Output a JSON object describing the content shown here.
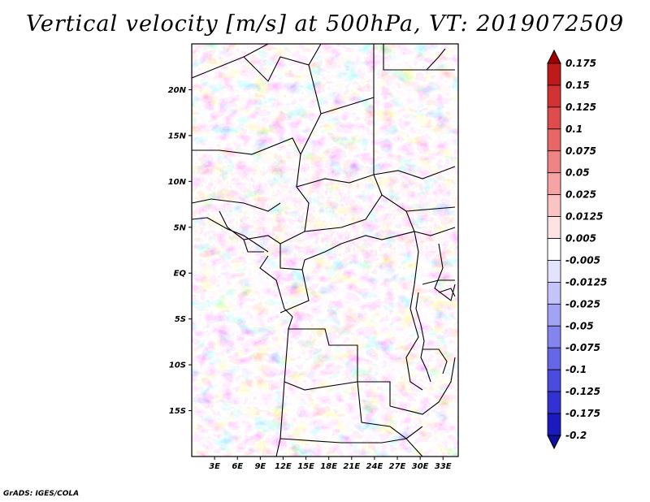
{
  "title": "Vertical velocity [m/s] at 500hPa, VT: 2019072509",
  "footer": "GrADS: IGES/COLA",
  "map": {
    "variable": "Vertical velocity",
    "units": "m/s",
    "level": "500hPa",
    "valid_time": "2019072509",
    "lat_labels": [
      "20N",
      "15N",
      "10N",
      "5N",
      "EQ",
      "5S",
      "10S",
      "15S"
    ],
    "lon_labels": [
      "3E",
      "6E",
      "9E",
      "12E",
      "15E",
      "18E",
      "21E",
      "24E",
      "27E",
      "30E",
      "33E"
    ],
    "lon_range": [
      0,
      35
    ],
    "lat_range": [
      -20,
      25
    ]
  },
  "colorbar": {
    "labels": [
      "0.175",
      "0.15",
      "0.125",
      "0.1",
      "0.075",
      "0.05",
      "0.025",
      "0.0125",
      "0.005",
      "-0.005",
      "-0.0125",
      "-0.025",
      "-0.05",
      "-0.075",
      "-0.1",
      "-0.125",
      "-0.175",
      "-0.2"
    ],
    "colors": [
      "#a00000",
      "#be1a1a",
      "#d23232",
      "#e04b4b",
      "#e86666",
      "#ef8484",
      "#f5a3a3",
      "#fac4c4",
      "#fde3e3",
      "#ffffff",
      "#e3e3fd",
      "#c4c4fa",
      "#a3a3f5",
      "#8484ef",
      "#6666e8",
      "#4b4be0",
      "#3232d2",
      "#1a1abe",
      "#1010a0"
    ]
  }
}
